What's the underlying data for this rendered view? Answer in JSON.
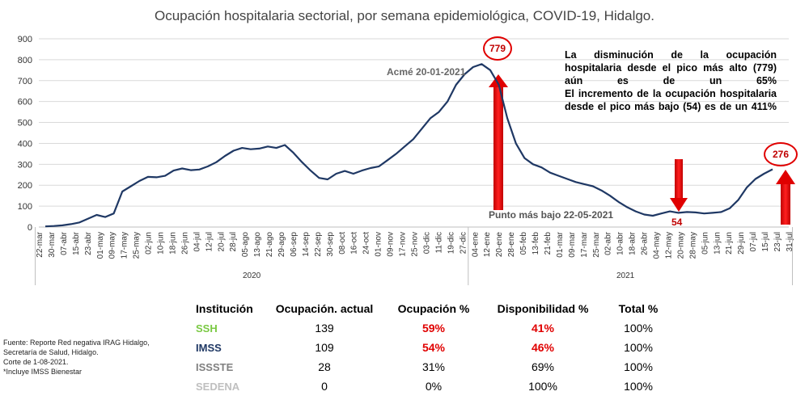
{
  "title": "Ocupación hospitalaria sectorial, por semana epidemiológica, COVID-19, Hidalgo.",
  "chart_data": {
    "type": "line",
    "title": "Ocupación hospitalaria sectorial, por semana epidemiológica, COVID-19, Hidalgo.",
    "ylim": [
      0,
      900
    ],
    "yticks": [
      0,
      100,
      200,
      300,
      400,
      500,
      600,
      700,
      800,
      900
    ],
    "grid": true,
    "xlabel": "",
    "ylabel": "",
    "x_tick_labels": [
      "22-mar",
      "30-mar",
      "07-abr",
      "15-abr",
      "23-abr",
      "01-may",
      "09-may",
      "17-may",
      "25-may",
      "02-jun",
      "10-jun",
      "18-jun",
      "26-jun",
      "04-jul",
      "12-jul",
      "20-jul",
      "28-jul",
      "05-ago",
      "13-ago",
      "21-ago",
      "29-ago",
      "06-sep",
      "14-sep",
      "22-sep",
      "30-sep",
      "08-oct",
      "16-oct",
      "24-oct",
      "01-nov",
      "09-nov",
      "17-nov",
      "25-nov",
      "03-dic",
      "11-dic",
      "19-dic",
      "27-dic",
      "04-ene",
      "12-ene",
      "20-ene",
      "28-ene",
      "05-feb",
      "13-feb",
      "21-feb",
      "01-mar",
      "09-mar",
      "17-mar",
      "25-mar",
      "02-abr",
      "10-abr",
      "18-abr",
      "26-abr",
      "04-may",
      "12-may",
      "20-may",
      "28-may",
      "05-jun",
      "13-jun",
      "21-jun",
      "29-jun",
      "07-jul",
      "15-jul",
      "23-jul",
      "31-jul"
    ],
    "year_labels": [
      "2020",
      "2021"
    ],
    "series": [
      {
        "name": "Ocupación hospitalaria",
        "color": "#1f3864",
        "values": [
          3,
          5,
          8,
          14,
          22,
          40,
          58,
          48,
          65,
          170,
          195,
          220,
          240,
          238,
          245,
          270,
          280,
          272,
          275,
          290,
          310,
          340,
          365,
          378,
          372,
          375,
          385,
          378,
          392,
          355,
          310,
          270,
          235,
          228,
          255,
          268,
          255,
          270,
          282,
          290,
          320,
          350,
          385,
          420,
          470,
          520,
          550,
          600,
          680,
          730,
          765,
          779,
          750,
          680,
          520,
          400,
          330,
          300,
          285,
          260,
          245,
          230,
          215,
          205,
          195,
          175,
          150,
          120,
          95,
          75,
          60,
          54,
          65,
          75,
          68,
          72,
          70,
          65,
          68,
          72,
          90,
          130,
          190,
          230,
          255,
          276
        ],
        "tick_index_of_values": "one value per 3.5 days, spanning 22-mar-2020 to 31-jul-2021"
      }
    ],
    "annotations": {
      "peak_value": "779",
      "peak_label": "Acmé 20-01-2021",
      "low_value": "54",
      "low_label": "Punto más bajo 22-05-2021",
      "last_value": "276"
    }
  },
  "summary_text": [
    "La disminución de la ocupación hospitalaria desde el pico más alto (779) aún es de un 65%",
    "El incremento de la ocupación hospitalaria desde el pico más bajo (54) es de un 411%"
  ],
  "table": {
    "headers": [
      "Institución",
      "Ocupación. actual",
      "Ocupación %",
      "Disponibilidad %",
      "Total %"
    ],
    "rows": [
      {
        "inst": "SSH",
        "inst_color": "#7ac943",
        "occ": "139",
        "occ_pct": "59%",
        "disp": "41%",
        "total": "100%",
        "highlight": true
      },
      {
        "inst": "IMSS",
        "inst_color": "#1f3864",
        "occ": "109",
        "occ_pct": "54%",
        "disp": "46%",
        "total": "100%",
        "highlight": true
      },
      {
        "inst": "ISSSTE",
        "inst_color": "#808080",
        "occ": "28",
        "occ_pct": "31%",
        "disp": "69%",
        "total": "100%",
        "highlight": false
      },
      {
        "inst": "SEDENA",
        "inst_color": "#bfbfbf",
        "occ": "0",
        "occ_pct": "0%",
        "disp": "100%",
        "total": "100%",
        "highlight": false
      }
    ]
  },
  "source_lines": [
    "Fuente: Reporte Red negativa IRAG Hidalgo,",
    "Secretaría de Salud, Hidalgo.",
    "Corte de 1-08-2021.",
    "*Incluye IMSS  Bienestar"
  ]
}
